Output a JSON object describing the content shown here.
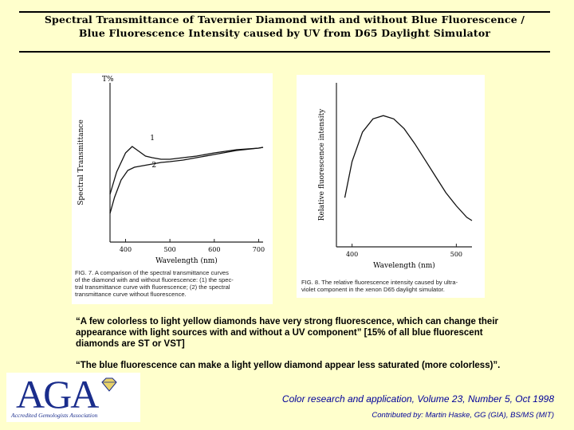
{
  "slide": {
    "title_line1": "Spectral Transmittance of Tavernier Diamond with and without Blue Fluorescence /",
    "title_line2": "Blue Fluorescence Intensity caused by UV from D65 Daylight Simulator",
    "quote1_line1": "“A few colorless to light yellow diamonds have very strong fluorescence, which can change their",
    "quote1_line2": "appearance with light sources with and without a UV component”  [15% of all blue fluorescent",
    "quote1_line3": "diamonds are ST or VST]",
    "quote2": "“The blue fluorescence can make a light yellow diamond  appear less saturated (more colorless)”.",
    "logo_text": "AGA",
    "logo_subtext": "Accredited Gemologists Association",
    "reference": "Color research and application, Volume 23, Number 5, Oct 1998",
    "contributor": "Contributed by: Martin Haske, GG (GIA), BS/MS (MIT)"
  },
  "chart_data": [
    {
      "type": "line",
      "ylabel": "Spectral Transmittance",
      "y_axis_unit": "T%",
      "xlabel": "Wavelength (nm)",
      "xlim": [
        365,
        710
      ],
      "ylim": [
        0,
        1
      ],
      "xticks": [
        400,
        500,
        600,
        700
      ],
      "grid": false,
      "series": [
        {
          "name": "1",
          "x": [
            365,
            380,
            400,
            415,
            430,
            445,
            460,
            480,
            500,
            530,
            560,
            600,
            650,
            700,
            710
          ],
          "y": [
            0.3,
            0.44,
            0.56,
            0.6,
            0.57,
            0.54,
            0.53,
            0.52,
            0.52,
            0.53,
            0.54,
            0.56,
            0.58,
            0.59,
            0.595
          ]
        },
        {
          "name": "2",
          "x": [
            365,
            375,
            390,
            405,
            420,
            440,
            460,
            480,
            500,
            530,
            560,
            600,
            650,
            700,
            710
          ],
          "y": [
            0.18,
            0.28,
            0.39,
            0.45,
            0.47,
            0.48,
            0.49,
            0.5,
            0.505,
            0.515,
            0.53,
            0.55,
            0.575,
            0.59,
            0.595
          ]
        }
      ],
      "caption_lines": [
        "FIG. 7.    A comparison of the spectral transmittance curves",
        "of the diamond with and without fluorescence: (1) the spec-",
        "tral transmittance curve with fluorescence; (2) the spectral",
        "transmittance curve without fluorescence."
      ]
    },
    {
      "type": "line",
      "ylabel": "Relative fluorescence intensity",
      "xlabel": "Wavelength (nm)",
      "xlim": [
        385,
        515
      ],
      "ylim": [
        0,
        1
      ],
      "xticks": [
        400,
        500
      ],
      "grid": false,
      "series": [
        {
          "x": [
            393,
            400,
            410,
            420,
            430,
            440,
            450,
            460,
            470,
            480,
            490,
            500,
            510,
            515
          ],
          "y": [
            0.3,
            0.52,
            0.7,
            0.78,
            0.8,
            0.78,
            0.72,
            0.63,
            0.53,
            0.43,
            0.33,
            0.25,
            0.18,
            0.16
          ]
        }
      ],
      "caption_lines": [
        "FIG. 8.    The relative fluorescence intensity caused by ultra-",
        "violet component in the xenon D65 daylight simulator."
      ]
    }
  ]
}
